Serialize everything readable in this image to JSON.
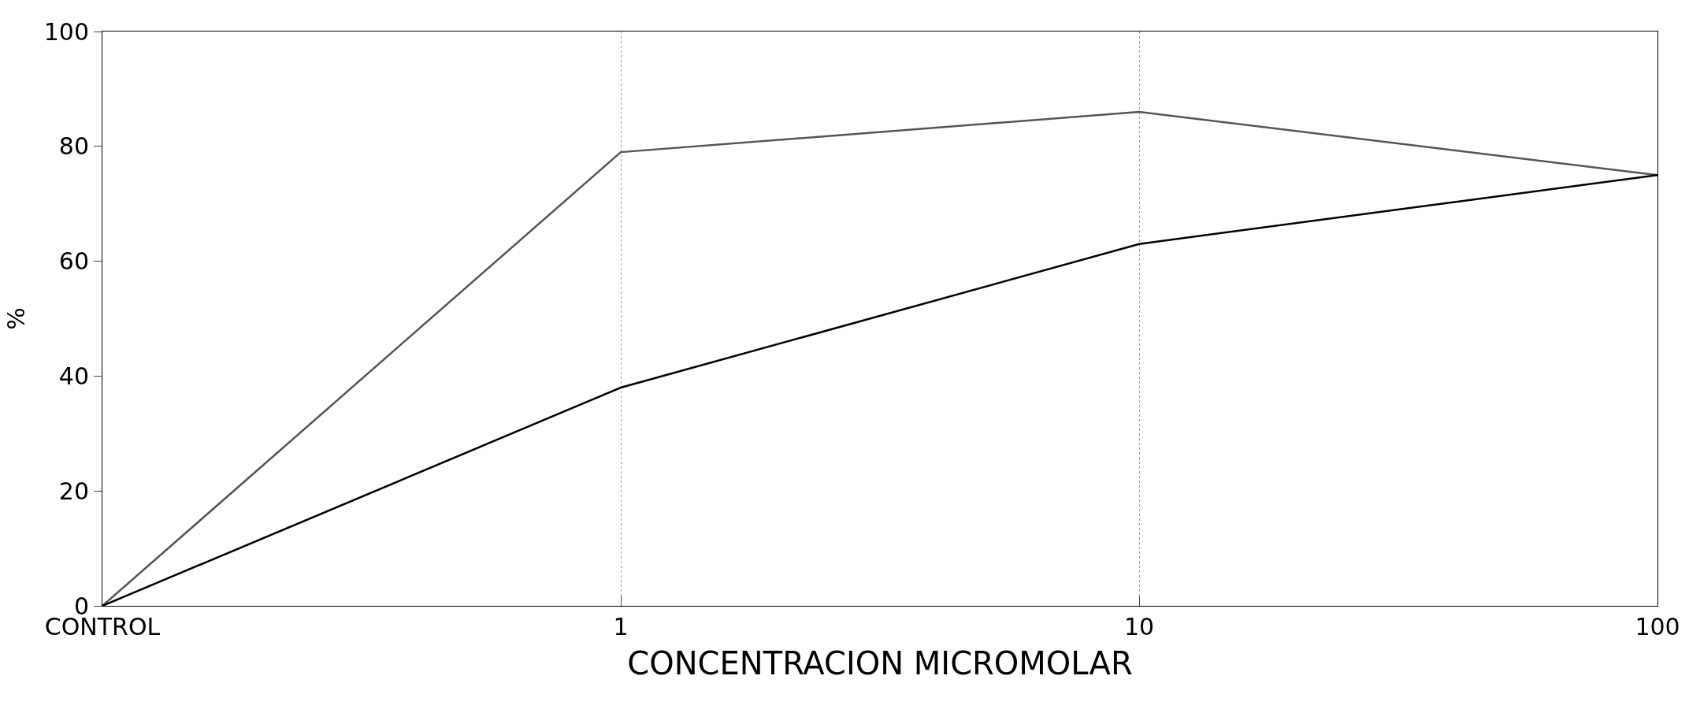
{
  "chart_data": {
    "type": "line",
    "xlabel": "CONCENTRACION MICROMOLAR",
    "ylabel": "%",
    "categories": [
      "CONTROL",
      "1",
      "10",
      "100"
    ],
    "series": [
      {
        "color": "#555555",
        "values": [
          0,
          79,
          86,
          75
        ]
      },
      {
        "color": "#000000",
        "values": [
          0,
          38,
          63,
          75
        ]
      }
    ],
    "ylim": [
      0,
      100
    ],
    "yticks": [
      0,
      20,
      40,
      60,
      80,
      100
    ],
    "grid": "x",
    "legend": false
  }
}
